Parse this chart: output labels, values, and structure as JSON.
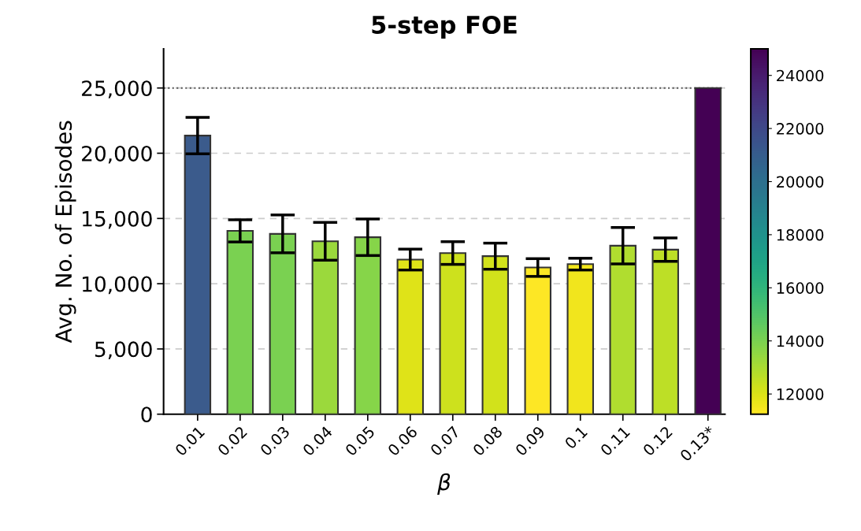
{
  "chart_data": {
    "type": "bar",
    "title": "5-step FOE",
    "xlabel": "β",
    "ylabel": "Avg. No. of Episodes",
    "categories": [
      "0.01",
      "0.02",
      "0.03",
      "0.04",
      "0.05",
      "0.06",
      "0.07",
      "0.08",
      "0.09",
      "0.1",
      "0.11",
      "0.12",
      "0.13*"
    ],
    "values": [
      21350,
      14050,
      13820,
      13250,
      13560,
      11850,
      12350,
      12110,
      11240,
      11500,
      12910,
      12610,
      25000
    ],
    "errors": [
      1400,
      850,
      1450,
      1450,
      1400,
      800,
      870,
      1000,
      680,
      450,
      1400,
      900,
      null
    ],
    "colors": [
      "#3b5b8c",
      "#7ad151",
      "#7ad151",
      "#9bd93c",
      "#86d549",
      "#dfe318",
      "#cde11d",
      "#d2e21b",
      "#fde725",
      "#f1e51d",
      "#b0dd2f",
      "#bddf26",
      "#440154"
    ],
    "ylim": [
      0,
      28000
    ],
    "yticks": [
      0,
      {
        "value": 5000,
        "label": "5,000"
      },
      {
        "value": 10000,
        "label": "10,000"
      },
      {
        "value": 15000,
        "label": "15,000"
      },
      {
        "value": 20000,
        "label": "20,000"
      },
      {
        "value": 25000,
        "label": "25,000"
      }
    ],
    "clim": [
      11240,
      25000
    ],
    "cticks": [
      12000,
      14000,
      16000,
      18000,
      20000,
      22000,
      24000
    ],
    "ref_lines": [
      {
        "axis": "y",
        "value": 25000,
        "color": "#555555",
        "line_style": "dotted"
      }
    ],
    "grid": "y",
    "legend": false
  }
}
